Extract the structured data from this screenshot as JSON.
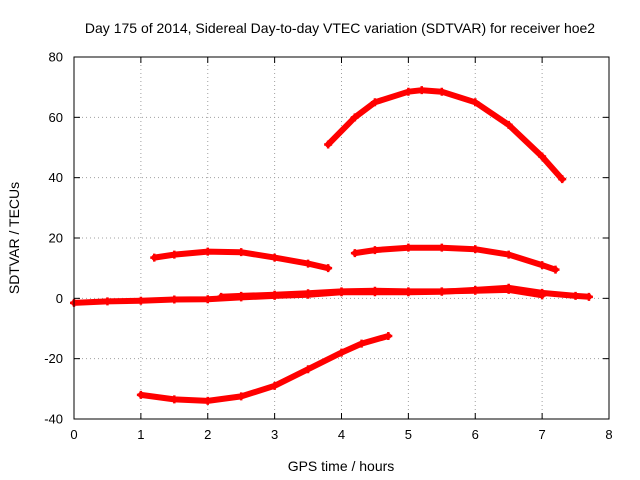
{
  "chart_data": {
    "type": "line",
    "title": "Day 175 of 2014, Sidereal Day-to-day VTEC variation (SDTVAR) for receiver hoe2",
    "xlabel": "GPS time / hours",
    "ylabel": "SDTVAR / TECUs",
    "xlim": [
      0,
      8
    ],
    "ylim": [
      -40,
      80
    ],
    "xticks": [
      0,
      1,
      2,
      3,
      4,
      5,
      6,
      7,
      8
    ],
    "yticks": [
      -40,
      -20,
      0,
      20,
      40,
      60,
      80
    ],
    "grid": true,
    "legend": "none",
    "color": "#ff0000",
    "series": [
      {
        "x": [
          0.0,
          0.5,
          1.0,
          1.5,
          2.0,
          2.5,
          3.0,
          3.5,
          4.0,
          4.5,
          5.0,
          5.5,
          6.0,
          6.5,
          7.0,
          7.5,
          7.7
        ],
        "y": [
          -1.5,
          -1.0,
          -0.8,
          -0.4,
          -0.3,
          0.3,
          0.8,
          1.2,
          2.0,
          2.0,
          2.0,
          2.2,
          2.8,
          3.5,
          1.8,
          0.8,
          0.5
        ]
      },
      {
        "x": [
          2.2,
          2.5,
          3.0,
          3.5,
          4.0,
          4.5,
          5.0,
          5.5,
          6.0,
          6.5,
          7.0
        ],
        "y": [
          0.5,
          0.8,
          1.2,
          1.7,
          2.3,
          2.5,
          2.3,
          2.3,
          2.5,
          2.8,
          1.0
        ]
      },
      {
        "x": [
          1.2,
          1.5,
          2.0,
          2.5,
          3.0,
          3.5,
          3.8
        ],
        "y": [
          13.5,
          14.5,
          15.5,
          15.3,
          13.5,
          11.5,
          10.0
        ]
      },
      {
        "x": [
          4.2,
          4.5,
          5.0,
          5.5,
          6.0,
          6.5,
          7.0,
          7.2
        ],
        "y": [
          15.0,
          16.0,
          16.8,
          16.8,
          16.3,
          14.5,
          11.0,
          9.5
        ]
      },
      {
        "x": [
          3.8,
          4.2,
          4.5,
          5.0,
          5.2,
          5.5,
          6.0,
          6.5,
          7.0,
          7.3
        ],
        "y": [
          51.0,
          60.0,
          65.0,
          68.5,
          69.0,
          68.5,
          65.0,
          57.5,
          47.0,
          39.5
        ]
      },
      {
        "x": [
          1.0,
          1.5,
          2.0,
          2.5,
          3.0,
          3.5,
          4.0,
          4.3,
          4.7
        ],
        "y": [
          -32.0,
          -33.5,
          -34.0,
          -32.5,
          -29.0,
          -23.5,
          -18.0,
          -15.0,
          -12.5
        ]
      }
    ]
  }
}
